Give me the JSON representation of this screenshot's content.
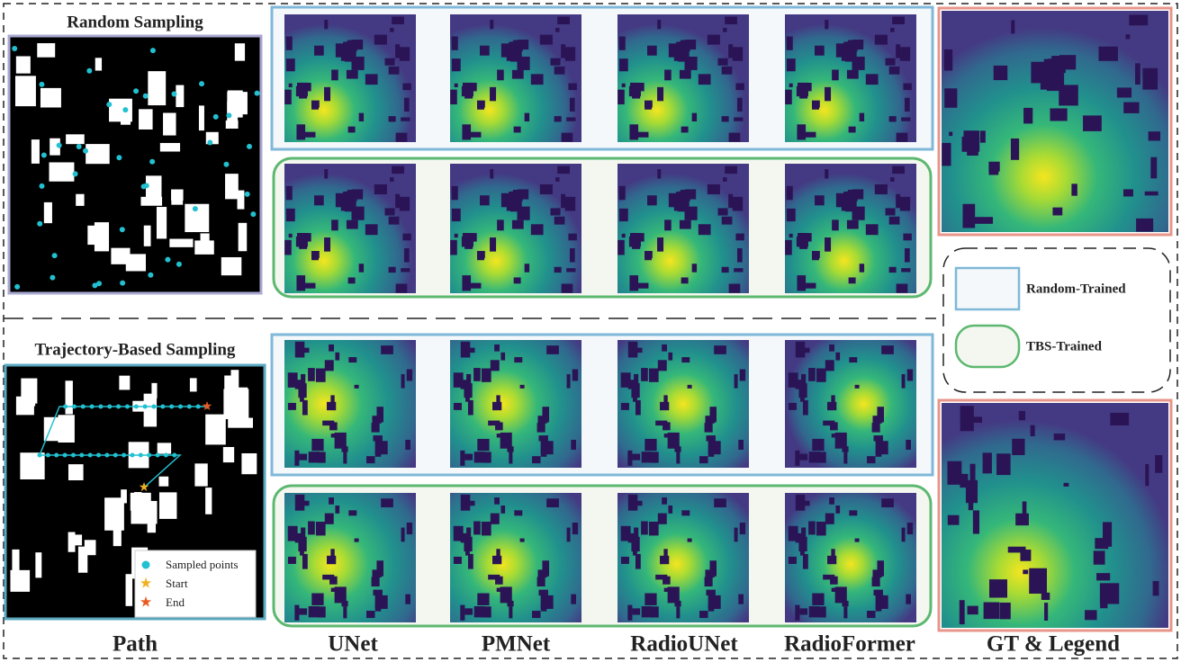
{
  "sections": [
    {
      "title": "Random Sampling"
    },
    {
      "title": "Trajectory-Based Sampling"
    }
  ],
  "path_legend": [
    "Sampled points",
    "Start",
    "End"
  ],
  "legend": [
    "Random-Trained",
    "TBS-Trained"
  ],
  "columns": [
    "Path",
    "UNet",
    "PMNet",
    "RadioUNet",
    "RadioFormer",
    "GT & Legend"
  ]
}
